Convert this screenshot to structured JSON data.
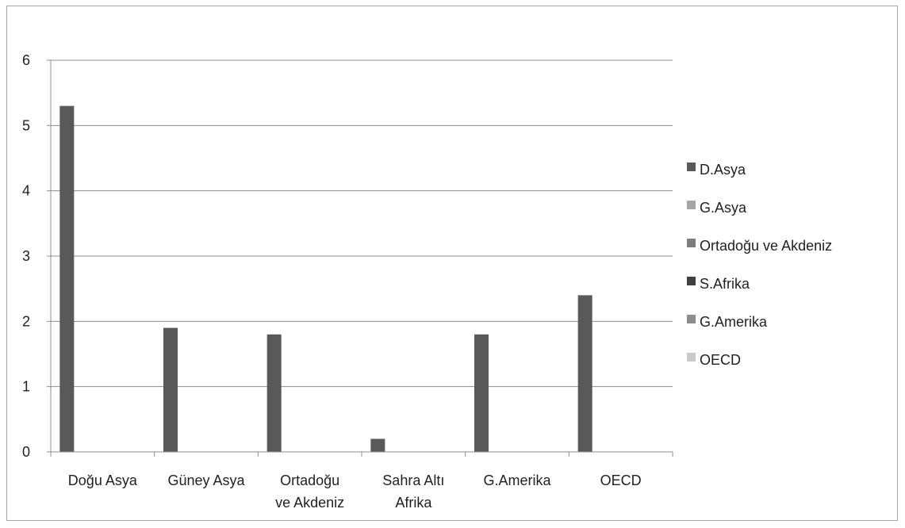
{
  "chart_data": {
    "type": "bar",
    "categories": [
      [
        "Doğu Asya"
      ],
      [
        "Güney Asya"
      ],
      [
        "Ortadoğu",
        "ve Akdeniz"
      ],
      [
        "Sahra Altı",
        "Afrika"
      ],
      [
        "G.Amerika"
      ],
      [
        "OECD"
      ]
    ],
    "series": [
      {
        "name": "D.Asya",
        "color": "#595959",
        "values": [
          5.3,
          1.9,
          1.8,
          0.2,
          1.8,
          2.4
        ]
      },
      {
        "name": "G.Asya",
        "color": "#a5a5a5",
        "values": [
          null,
          null,
          null,
          null,
          null,
          null
        ]
      },
      {
        "name": "Ortadoğu ve Akdeniz",
        "color": "#7f7f7f",
        "values": [
          null,
          null,
          null,
          null,
          null,
          null
        ]
      },
      {
        "name": "S.Afrika",
        "color": "#404040",
        "values": [
          null,
          null,
          null,
          null,
          null,
          null
        ]
      },
      {
        "name": "G.Amerika",
        "color": "#8c8c8c",
        "values": [
          null,
          null,
          null,
          null,
          null,
          null
        ]
      },
      {
        "name": "OECD",
        "color": "#c9c9c9",
        "values": [
          null,
          null,
          null,
          null,
          null,
          null
        ]
      }
    ],
    "yticks": [
      0,
      1,
      2,
      3,
      4,
      5,
      6
    ],
    "ylim": [
      0,
      6
    ],
    "title": "",
    "xlabel": "",
    "ylabel": "",
    "grid": "horizontal",
    "legend_position": "right"
  }
}
